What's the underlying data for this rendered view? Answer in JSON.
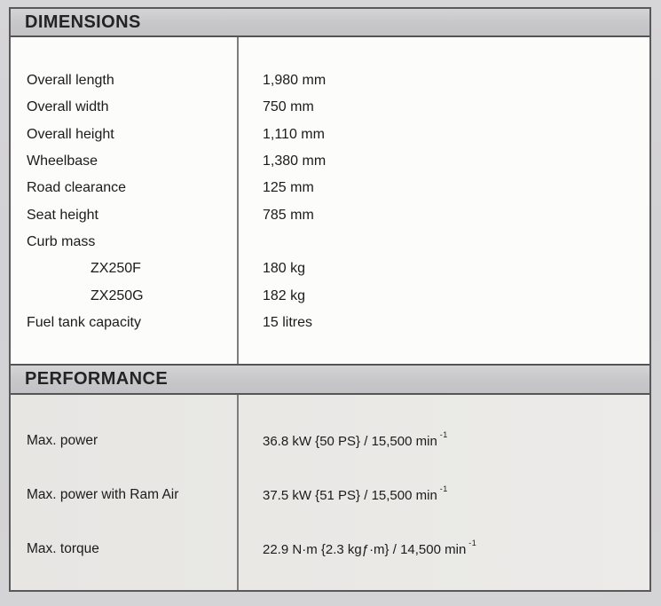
{
  "colors": {
    "page_background": "#d3d2d4",
    "header_bar": "#c7c6c8",
    "dimensions_body": "#fcfcfb",
    "performance_body": "#e9e8e5",
    "outer_border": "#59585a",
    "column_divider": "#7d7c7e",
    "text": "#1b1b1b"
  },
  "table": {
    "sections": [
      {
        "title": "DIMENSIONS",
        "rows": [
          {
            "label": "Overall length",
            "value": "1,980 mm"
          },
          {
            "label": "Overall width",
            "value": "750 mm"
          },
          {
            "label": "Overall height",
            "value": "1,110 mm"
          },
          {
            "label": "Wheelbase",
            "value": "1,380 mm"
          },
          {
            "label": "Road clearance",
            "value": "125 mm"
          },
          {
            "label": "Seat height",
            "value": "785 mm"
          },
          {
            "label": "Curb mass",
            "value": ""
          },
          {
            "label": "ZX250F",
            "value": "180 kg"
          },
          {
            "label": "ZX250G",
            "value": "182 kg"
          },
          {
            "label": "Fuel tank capacity",
            "value": "15 litres"
          }
        ]
      },
      {
        "title": "PERFORMANCE",
        "rows": [
          {
            "label": "Max. power",
            "value": "36.8 kW {50 PS} / 15,500 min",
            "sup": "-1"
          },
          {
            "label": "Max. power with Ram Air",
            "value": "37.5 kW {51 PS} / 15,500 min",
            "sup": "-1"
          },
          {
            "label": "Max. torque",
            "value": "22.9 N·m {2.3 kgƒ·m} / 14,500 min",
            "sup": "-1"
          }
        ]
      }
    ]
  }
}
